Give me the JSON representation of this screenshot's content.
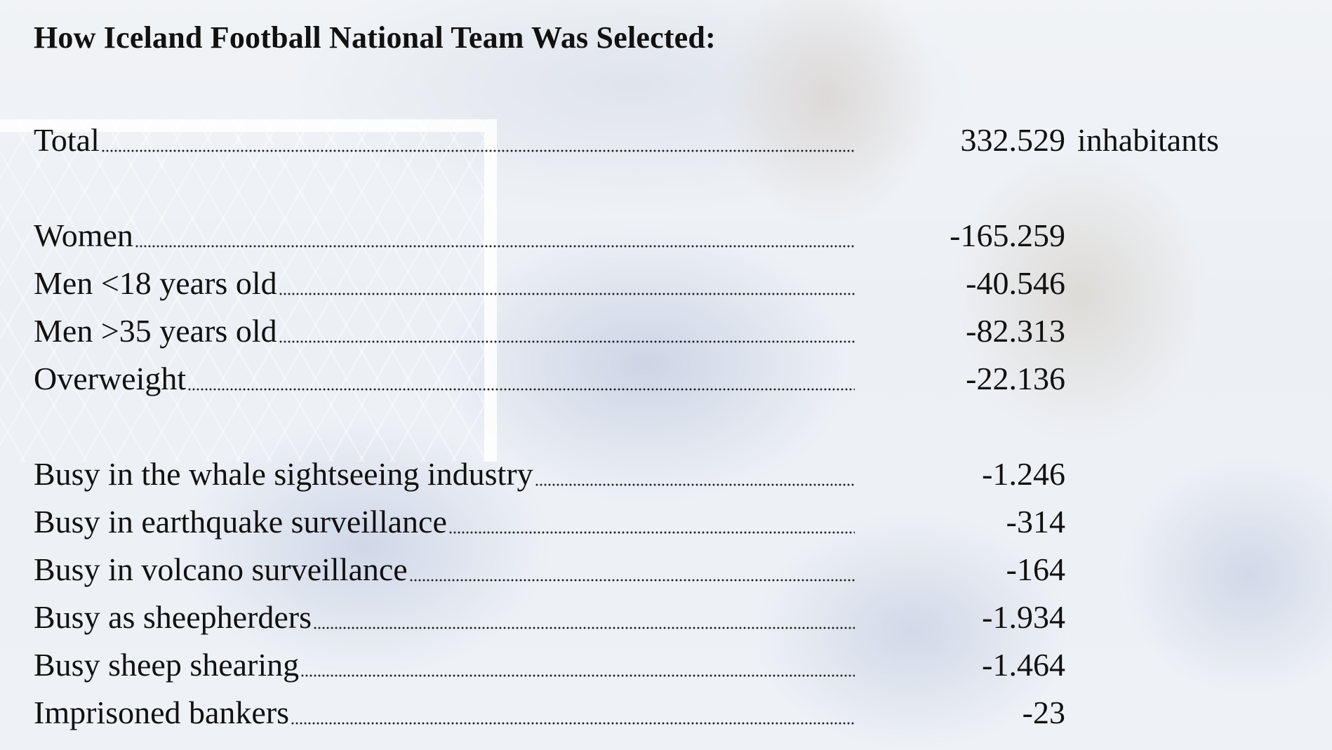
{
  "title": "How Iceland Football National Team Was Selected:",
  "total": {
    "label": "Total",
    "value": "332.529",
    "unit": "inhabitants"
  },
  "rows": [
    {
      "label": "Women",
      "value": "-165.259"
    },
    {
      "label": "Men <18 years old",
      "value": "-40.546"
    },
    {
      "label": "Men >35 years old",
      "value": "-82.313"
    },
    {
      "label": "Overweight",
      "value": "-22.136"
    },
    {
      "label": "Busy in the whale sightseeing industry",
      "value": "-1.246"
    },
    {
      "label": "Busy in earthquake surveillance",
      "value": "-314"
    },
    {
      "label": "Busy in volcano surveillance",
      "value": "-164"
    },
    {
      "label": "Busy as sheepherders",
      "value": "-1.934"
    },
    {
      "label": "Busy sheep shearing",
      "value": "-1.464"
    },
    {
      "label": "Imprisoned bankers",
      "value": "-23"
    }
  ]
}
